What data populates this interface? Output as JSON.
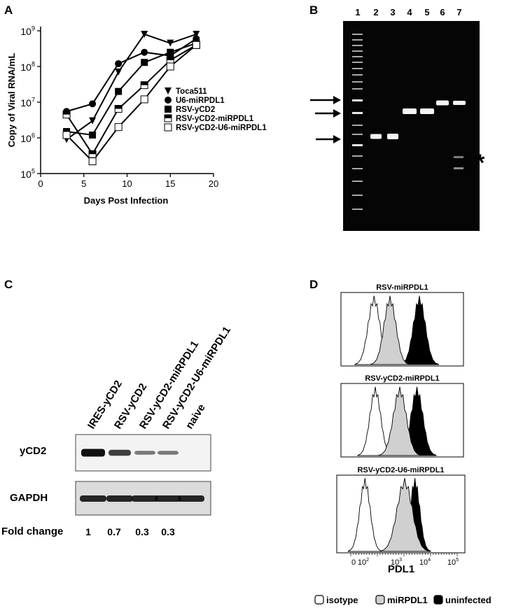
{
  "panels": {
    "a": {
      "letter": "A"
    },
    "b": {
      "letter": "B"
    },
    "c": {
      "letter": "C"
    },
    "d": {
      "letter": "D"
    }
  },
  "chart_data": [
    {
      "panel": "A",
      "type": "line",
      "ylabel": "Copy of Viral RNA/mL",
      "xlabel": "Days Post Infection",
      "x_ticks": [
        0,
        5,
        10,
        15,
        20
      ],
      "y_ticks": [
        {
          "exp": 5,
          "base": "10",
          "sup": "5"
        },
        {
          "exp": 6,
          "base": "10",
          "sup": "6"
        },
        {
          "exp": 7,
          "base": "10",
          "sup": "7"
        },
        {
          "exp": 8,
          "base": "10",
          "sup": "8"
        },
        {
          "exp": 9,
          "base": "10",
          "sup": "9"
        }
      ],
      "xlim": [
        0,
        20
      ],
      "ylim_log10": [
        5,
        9
      ],
      "log_y": true,
      "legend_position": "right",
      "series": [
        {
          "name": "Toca511",
          "marker": "triangle-down",
          "x": [
            3,
            6,
            9,
            12,
            15,
            18
          ],
          "y": [
            900000,
            3000000,
            70000000,
            800000000,
            450000000,
            800000000
          ]
        },
        {
          "name": "U6-miRPDL1",
          "marker": "circle",
          "x": [
            3,
            6,
            9,
            12,
            15,
            18
          ],
          "y": [
            5500000,
            9000000,
            120000000,
            250000000,
            200000000,
            600000000
          ]
        },
        {
          "name": "RSV-yCD2",
          "marker": "square-filled",
          "x": [
            3,
            6,
            9,
            12,
            15,
            18
          ],
          "y": [
            1500000,
            1200000,
            20000000,
            130000000,
            250000000,
            450000000
          ]
        },
        {
          "name": "RSV-yCD2-miRPDL1",
          "marker": "square-half",
          "x": [
            3,
            6,
            9,
            12,
            15,
            18
          ],
          "y": [
            4500000,
            350000,
            6500000,
            30000000,
            150000000,
            400000000
          ]
        },
        {
          "name": "RSV-yCD2-U6-miRPDL1",
          "marker": "square-open",
          "x": [
            3,
            6,
            9,
            12,
            15,
            18
          ],
          "y": [
            1200000,
            220000,
            2000000,
            12000000,
            100000000,
            400000000
          ]
        }
      ]
    }
  ],
  "gel": {
    "lane_labels": [
      "1",
      "2",
      "3",
      "4",
      "5",
      "6",
      "7"
    ],
    "star": "*"
  },
  "western": {
    "lane_labels": [
      "IRES-yCD2",
      "RSV-yCD2",
      "RSV-yCD2-miRPDL1",
      "RSV-yCD2-U6-miRPDL1",
      "naive"
    ],
    "row_labels": {
      "ycd2": "yCD2",
      "gapdh": "GAPDH"
    },
    "fold_change_label": "Fold change",
    "fold_changes": [
      "1",
      "0.7",
      "0.3",
      "0.3"
    ],
    "ycd2_intensity": [
      1,
      0.7,
      0.3,
      0.3,
      0
    ],
    "gapdh_intensity": [
      1,
      1,
      1,
      1,
      1
    ]
  },
  "flow": {
    "titles": [
      "RSV-miRPDL1",
      "RSV-yCD2-miRPDL1",
      "RSV-yCD2-U6-miRPDL1"
    ],
    "x_ticks": [
      {
        "base": "10",
        "sup": "2"
      },
      {
        "base": "10",
        "sup": "3"
      },
      {
        "base": "10",
        "sup": "4"
      },
      {
        "base": "10",
        "sup": "5"
      }
    ],
    "x_zero": "0",
    "xlabel": "PDL1",
    "legend": [
      {
        "name": "isotype",
        "fill": "#ffffff"
      },
      {
        "name": "miRPDL1",
        "fill": "#d0d0d0"
      },
      {
        "name": "uninfected",
        "fill": "#000000"
      }
    ]
  }
}
